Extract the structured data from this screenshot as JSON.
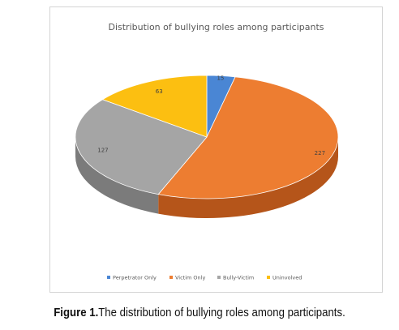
{
  "chart_data": {
    "type": "pie",
    "title": "Distribution of bullying roles among participants",
    "categories": [
      "Perpetrator Only",
      "Victim Only",
      "Bully-Victim",
      "Uninvolved"
    ],
    "values": [
      15,
      227,
      127,
      63
    ],
    "colors": [
      "#4a86d4",
      "#ed7d31",
      "#a5a5a5",
      "#fcbf11"
    ],
    "side_colors": [
      "#2f5e9e",
      "#b5551a",
      "#7b7b7b",
      "#c49000"
    ],
    "style": "3d",
    "legend_position": "bottom"
  },
  "caption": {
    "label": "Figure 1.",
    "text": "The distribution of bullying roles among participants."
  }
}
